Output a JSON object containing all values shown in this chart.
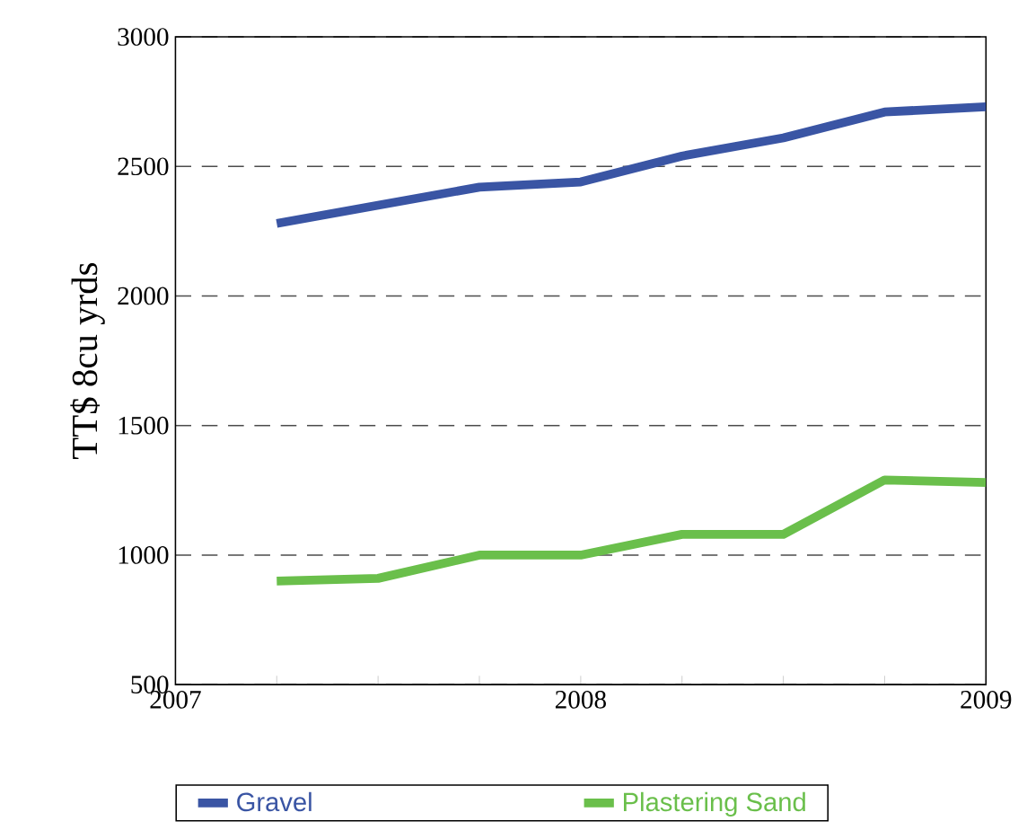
{
  "chart_data": {
    "type": "line",
    "ylabel": "TT$ 8cu yrds",
    "x": [
      2007.25,
      2007.5,
      2007.75,
      2008.0,
      2008.25,
      2008.5,
      2008.75,
      2009.0
    ],
    "series": [
      {
        "name": "Gravel",
        "color": "#3a55a4",
        "values": [
          2280,
          2350,
          2420,
          2440,
          2540,
          2610,
          2710,
          2730
        ]
      },
      {
        "name": "Plastering Sand",
        "color": "#6abf4b",
        "values": [
          900,
          910,
          1000,
          1000,
          1080,
          1080,
          1290,
          1280
        ]
      }
    ],
    "xlim": [
      2007,
      2009
    ],
    "ylim": [
      500,
      3000
    ],
    "xticks": [
      2007,
      {
        "value": 2007.25,
        "label": null
      },
      {
        "value": 2007.5,
        "label": null
      },
      {
        "value": 2007.75,
        "label": null
      },
      2008,
      {
        "value": 2008.25,
        "label": null
      },
      {
        "value": 2008.5,
        "label": null
      },
      {
        "value": 2008.75,
        "label": null
      },
      2009
    ],
    "yticks": [
      500,
      1000,
      1500,
      2000,
      2500,
      3000
    ],
    "grid": "y",
    "legend": "bottom",
    "line_style": "solid"
  }
}
